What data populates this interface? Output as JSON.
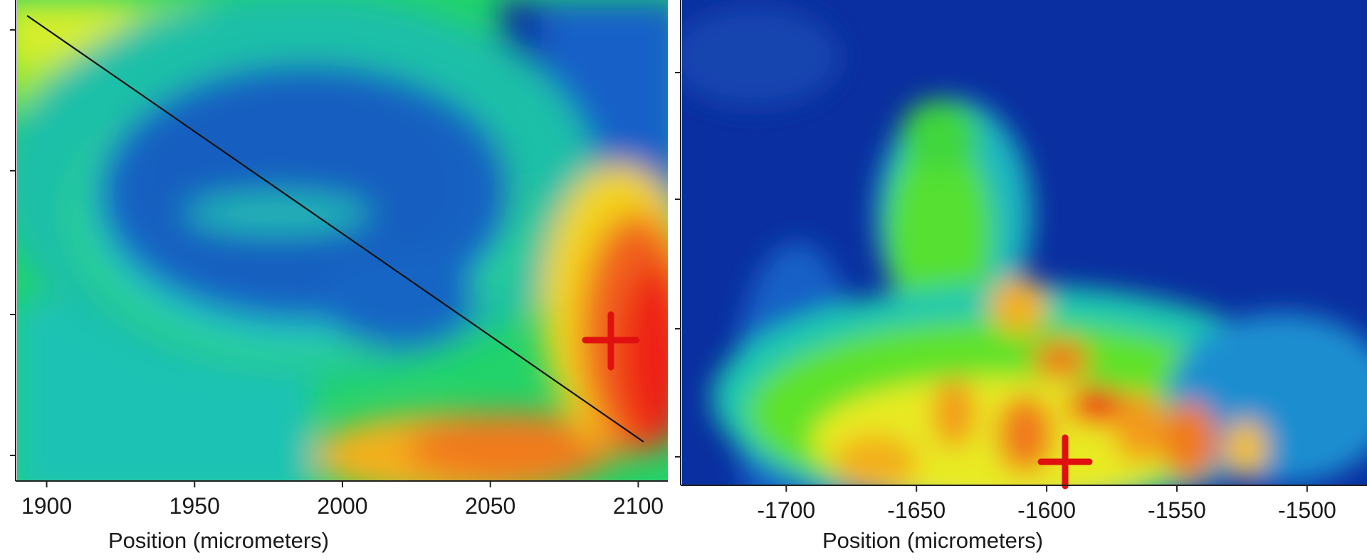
{
  "chart_data": [
    {
      "type": "heatmap",
      "title": "",
      "xlabel": "Position (micrometers)",
      "ylabel": "",
      "x_ticks": [
        1900,
        1950,
        2000,
        2050,
        2100
      ],
      "xlim": [
        1890,
        2110
      ],
      "y_tick_count": 4,
      "colormap": [
        "#0a2e9e",
        "#1260c8",
        "#19c6c6",
        "#22e62a",
        "#7cf21a",
        "#f3ef1a",
        "#f39a1c",
        "#ee2418"
      ],
      "annotations": [
        {
          "kind": "line-profile",
          "from_x": 1894,
          "to_x": 2110,
          "color": "#111111"
        },
        {
          "kind": "cross-marker",
          "x": 2099,
          "color": "#e01010"
        }
      ]
    },
    {
      "type": "heatmap",
      "title": "",
      "xlabel": "Position (micrometers)",
      "ylabel": "",
      "x_ticks": [
        -1700,
        -1650,
        -1600,
        -1550,
        -1500
      ],
      "xlim": [
        -1740,
        -1477
      ],
      "y_tick_count": 4,
      "colormap": [
        "#0a2e9e",
        "#1260c8",
        "#19c6c6",
        "#22e62a",
        "#7cf21a",
        "#f3ef1a",
        "#f39a1c",
        "#ee2418"
      ],
      "annotations": [
        {
          "kind": "cross-marker",
          "x": -1590,
          "color": "#e01010"
        }
      ]
    }
  ]
}
